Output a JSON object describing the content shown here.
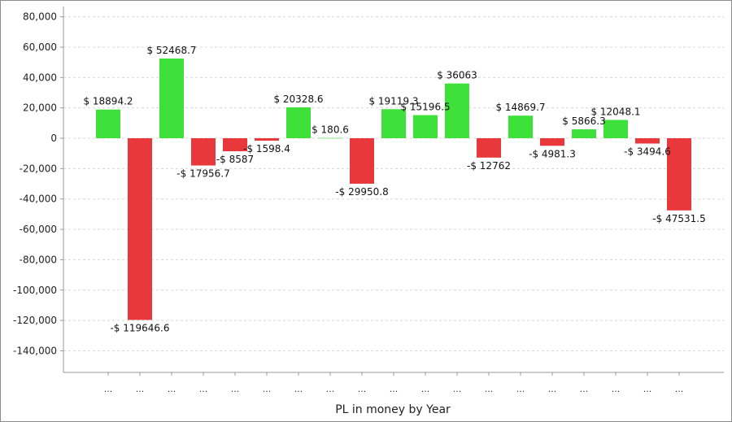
{
  "chart_data": {
    "type": "bar",
    "xlabel": "PL in money by Year",
    "ylabel": "",
    "ylim": [
      -150000,
      85000
    ],
    "yticks": [
      80000,
      60000,
      40000,
      20000,
      0,
      -20000,
      -40000,
      -60000,
      -80000,
      -100000,
      -120000,
      -140000
    ],
    "ytick_labels": [
      "80,000",
      "60,000",
      "40,000",
      "20,000",
      "0",
      "-20,000",
      "-40,000",
      "-60,000",
      "-80,000",
      "-100,000",
      "-120,000",
      "-140,000"
    ],
    "grid": true,
    "categories": [
      "...",
      "...",
      "...",
      "...",
      "...",
      "...",
      "...",
      "...",
      "...",
      "...",
      "...",
      "...",
      "...",
      "...",
      "...",
      "...",
      "...",
      "...",
      "..."
    ],
    "values": [
      18894.2,
      -119646.6,
      52468.7,
      -17956.7,
      -8587,
      -1598.4,
      20328.6,
      180.6,
      -29950.8,
      19119.3,
      15196.5,
      36063,
      -12762,
      14869.7,
      -4981.3,
      5866.3,
      12048.1,
      -3494.6,
      -47531.5
    ],
    "data_labels": [
      "$ 18894.2",
      "-$ 119646.6",
      "$ 52468.7",
      "-$ 17956.7",
      "-$ 8587",
      "-$ 1598.4",
      "$ 20328.6",
      "$ 180.6",
      "-$ 29950.8",
      "$ 19119.3",
      "$ 15196.5",
      "$ 36063",
      "-$ 12762",
      "$ 14869.7",
      "-$ 4981.3",
      "$ 5866.3",
      "$ 12048.1",
      "-$ 3494.6",
      "-$ 47531.5"
    ],
    "colors": {
      "positive": "#3ee03a",
      "negative": "#e8383c",
      "grid": "#d8d8d8",
      "axis": "#9a9a9a"
    }
  }
}
